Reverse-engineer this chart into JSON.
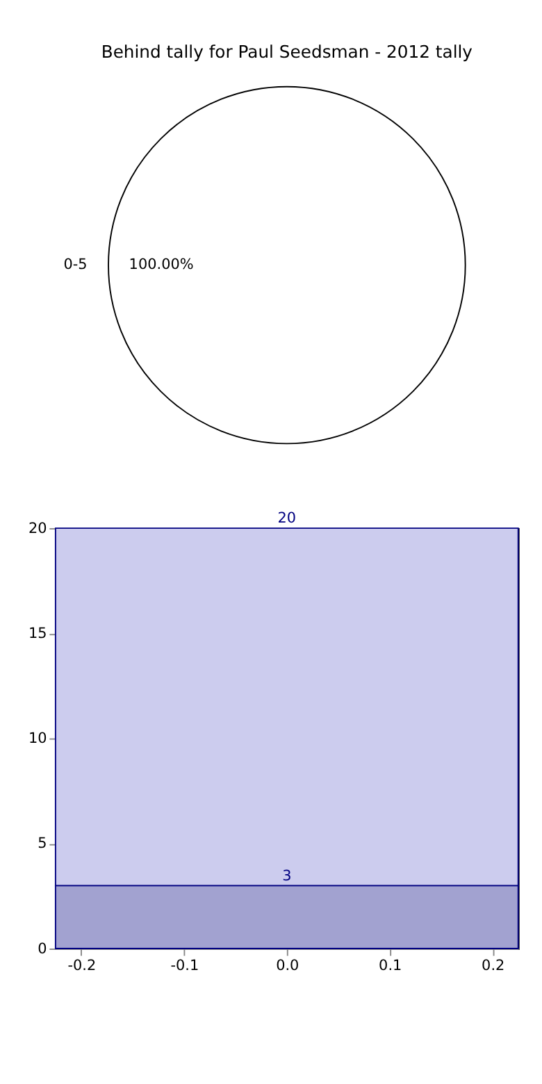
{
  "chart_data": [
    {
      "type": "pie",
      "title": "Behind tally for Paul Seedsman - 2012 tally",
      "categories": [
        "0-5"
      ],
      "values": [
        100
      ],
      "colors": [
        "#ffffff"
      ],
      "value_labels": [
        "100.00%"
      ]
    },
    {
      "type": "area",
      "stacked": true,
      "x": [
        -0.225,
        0.0,
        0.225
      ],
      "xlim": [
        -0.225,
        0.225
      ],
      "xticks": [
        -0.2,
        -0.1,
        {
          "value": 0,
          "label": "0.0"
        },
        0.1,
        0.2
      ],
      "ylim": [
        0,
        20
      ],
      "yticks": [
        0,
        5,
        10,
        15,
        20
      ],
      "series": [
        {
          "color": "#a2a2d0",
          "values": [
            3,
            3,
            3
          ],
          "value_labels": [
            null,
            "3",
            null
          ]
        },
        {
          "color": "#ccccee",
          "values": [
            17,
            17,
            17
          ]
        }
      ],
      "totals": [
        null,
        "20",
        null
      ]
    }
  ]
}
